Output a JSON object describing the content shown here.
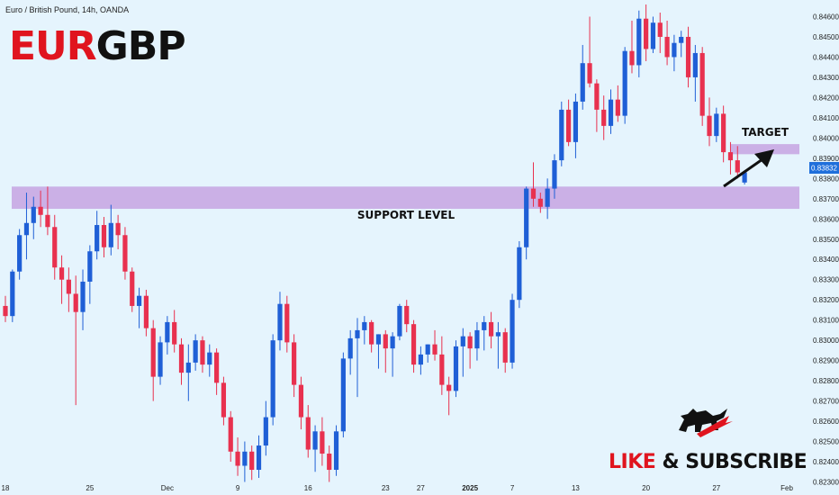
{
  "header": {
    "symbol_line": "Euro / British Pound, 14h, OANDA"
  },
  "title": {
    "part1": "EUR",
    "part2": "GBP"
  },
  "annotations": {
    "target": "TARGET",
    "support": "SUPPORT LEVEL"
  },
  "branding": {
    "cta_left": "LIKE ",
    "cta_amp": "&",
    "cta_right": " SUBSCRIBE",
    "logo_icon": "bull-bear-icon"
  },
  "colors": {
    "background": "#e5f4fd",
    "bull": "#1f5fd6",
    "bear": "#e8314f",
    "zone": "#c8a8e3",
    "title_red": "#e0141e",
    "title_black": "#111111"
  },
  "price_label": "0.83832",
  "chart_data": {
    "type": "candlestick",
    "symbol": "Euro / British Pound",
    "interval": "14h",
    "source": "OANDA",
    "ylim": [
      0.8228,
      0.8466
    ],
    "yticks": [
      "0.84600",
      "0.84500",
      "0.84400",
      "0.84300",
      "0.84200",
      "0.84100",
      "0.84000",
      "0.83900",
      "0.83800",
      "0.83700",
      "0.83600",
      "0.83500",
      "0.83400",
      "0.83300",
      "0.83200",
      "0.83100",
      "0.83000",
      "0.82900",
      "0.82800",
      "0.82700",
      "0.82600",
      "0.82500",
      "0.82400",
      "0.82300"
    ],
    "xticks": [
      {
        "label": "18",
        "index": 0
      },
      {
        "label": "25",
        "index": 12
      },
      {
        "label": "Dec",
        "index": 23
      },
      {
        "label": "9",
        "index": 33
      },
      {
        "label": "16",
        "index": 43
      },
      {
        "label": "23",
        "index": 54
      },
      {
        "label": "27",
        "index": 59
      },
      {
        "label": "2025",
        "index": 66
      },
      {
        "label": "7",
        "index": 72
      },
      {
        "label": "13",
        "index": 81
      },
      {
        "label": "20",
        "index": 91
      },
      {
        "label": "27",
        "index": 101
      },
      {
        "label": "Feb",
        "index": 111
      }
    ],
    "current_price": 0.83832,
    "support_zone": [
      0.8365,
      0.8376
    ],
    "target_zone": [
      0.8392,
      0.8397
    ],
    "candles": [
      {
        "o": 0.8317,
        "h": 0.8322,
        "l": 0.8309,
        "c": 0.8312
      },
      {
        "o": 0.8312,
        "h": 0.8335,
        "l": 0.8309,
        "c": 0.8334
      },
      {
        "o": 0.8334,
        "h": 0.8355,
        "l": 0.833,
        "c": 0.8352
      },
      {
        "o": 0.8352,
        "h": 0.8373,
        "l": 0.834,
        "c": 0.8358
      },
      {
        "o": 0.8358,
        "h": 0.8371,
        "l": 0.835,
        "c": 0.8366
      },
      {
        "o": 0.8366,
        "h": 0.8374,
        "l": 0.8356,
        "c": 0.8362
      },
      {
        "o": 0.8362,
        "h": 0.8376,
        "l": 0.8352,
        "c": 0.8356
      },
      {
        "o": 0.8356,
        "h": 0.8362,
        "l": 0.833,
        "c": 0.8336
      },
      {
        "o": 0.8336,
        "h": 0.8342,
        "l": 0.8318,
        "c": 0.833
      },
      {
        "o": 0.833,
        "h": 0.8336,
        "l": 0.8314,
        "c": 0.8323
      },
      {
        "o": 0.8323,
        "h": 0.8332,
        "l": 0.8268,
        "c": 0.8314
      },
      {
        "o": 0.8314,
        "h": 0.8335,
        "l": 0.8305,
        "c": 0.8329
      },
      {
        "o": 0.8329,
        "h": 0.8347,
        "l": 0.8318,
        "c": 0.8344
      },
      {
        "o": 0.8344,
        "h": 0.8364,
        "l": 0.834,
        "c": 0.8357
      },
      {
        "o": 0.8357,
        "h": 0.8361,
        "l": 0.8341,
        "c": 0.8346
      },
      {
        "o": 0.8346,
        "h": 0.8367,
        "l": 0.8342,
        "c": 0.8358
      },
      {
        "o": 0.8358,
        "h": 0.8362,
        "l": 0.8345,
        "c": 0.8352
      },
      {
        "o": 0.8352,
        "h": 0.8356,
        "l": 0.833,
        "c": 0.8334
      },
      {
        "o": 0.8334,
        "h": 0.8336,
        "l": 0.8314,
        "c": 0.8317
      },
      {
        "o": 0.8317,
        "h": 0.8326,
        "l": 0.8306,
        "c": 0.8322
      },
      {
        "o": 0.8322,
        "h": 0.8325,
        "l": 0.8302,
        "c": 0.8306
      },
      {
        "o": 0.8306,
        "h": 0.831,
        "l": 0.827,
        "c": 0.8282
      },
      {
        "o": 0.8282,
        "h": 0.8302,
        "l": 0.8278,
        "c": 0.8299
      },
      {
        "o": 0.8299,
        "h": 0.8312,
        "l": 0.8293,
        "c": 0.8309
      },
      {
        "o": 0.8309,
        "h": 0.8315,
        "l": 0.8294,
        "c": 0.8298
      },
      {
        "o": 0.8298,
        "h": 0.8301,
        "l": 0.8278,
        "c": 0.8284
      },
      {
        "o": 0.8284,
        "h": 0.8298,
        "l": 0.827,
        "c": 0.8289
      },
      {
        "o": 0.8289,
        "h": 0.8303,
        "l": 0.8285,
        "c": 0.83
      },
      {
        "o": 0.83,
        "h": 0.8302,
        "l": 0.8284,
        "c": 0.8288
      },
      {
        "o": 0.8288,
        "h": 0.8298,
        "l": 0.8282,
        "c": 0.8294
      },
      {
        "o": 0.8294,
        "h": 0.8296,
        "l": 0.8273,
        "c": 0.8279
      },
      {
        "o": 0.8279,
        "h": 0.8282,
        "l": 0.8258,
        "c": 0.8262
      },
      {
        "o": 0.8262,
        "h": 0.8265,
        "l": 0.824,
        "c": 0.8245
      },
      {
        "o": 0.8245,
        "h": 0.8252,
        "l": 0.8233,
        "c": 0.8238
      },
      {
        "o": 0.8238,
        "h": 0.825,
        "l": 0.823,
        "c": 0.8245
      },
      {
        "o": 0.8245,
        "h": 0.8248,
        "l": 0.8231,
        "c": 0.8236
      },
      {
        "o": 0.8236,
        "h": 0.8253,
        "l": 0.8232,
        "c": 0.8248
      },
      {
        "o": 0.8248,
        "h": 0.827,
        "l": 0.8243,
        "c": 0.8262
      },
      {
        "o": 0.8262,
        "h": 0.8303,
        "l": 0.8258,
        "c": 0.83
      },
      {
        "o": 0.83,
        "h": 0.8324,
        "l": 0.8295,
        "c": 0.8318
      },
      {
        "o": 0.8318,
        "h": 0.8322,
        "l": 0.8294,
        "c": 0.8299
      },
      {
        "o": 0.8299,
        "h": 0.8303,
        "l": 0.8272,
        "c": 0.8278
      },
      {
        "o": 0.8278,
        "h": 0.8282,
        "l": 0.8256,
        "c": 0.8262
      },
      {
        "o": 0.8262,
        "h": 0.8268,
        "l": 0.8242,
        "c": 0.8246
      },
      {
        "o": 0.8246,
        "h": 0.8258,
        "l": 0.8235,
        "c": 0.8255
      },
      {
        "o": 0.8255,
        "h": 0.8262,
        "l": 0.8238,
        "c": 0.8244
      },
      {
        "o": 0.8244,
        "h": 0.8248,
        "l": 0.823,
        "c": 0.8236
      },
      {
        "o": 0.8236,
        "h": 0.8258,
        "l": 0.8233,
        "c": 0.8255
      },
      {
        "o": 0.8255,
        "h": 0.8294,
        "l": 0.8252,
        "c": 0.8291
      },
      {
        "o": 0.8291,
        "h": 0.8305,
        "l": 0.8283,
        "c": 0.8301
      },
      {
        "o": 0.8301,
        "h": 0.8311,
        "l": 0.8272,
        "c": 0.8305
      },
      {
        "o": 0.8305,
        "h": 0.8312,
        "l": 0.8298,
        "c": 0.8309
      },
      {
        "o": 0.8309,
        "h": 0.831,
        "l": 0.8294,
        "c": 0.8298
      },
      {
        "o": 0.8298,
        "h": 0.8303,
        "l": 0.8286,
        "c": 0.8303
      },
      {
        "o": 0.8303,
        "h": 0.8305,
        "l": 0.8284,
        "c": 0.8296
      },
      {
        "o": 0.8296,
        "h": 0.8304,
        "l": 0.8282,
        "c": 0.8302
      },
      {
        "o": 0.8302,
        "h": 0.8318,
        "l": 0.83,
        "c": 0.8317
      },
      {
        "o": 0.8317,
        "h": 0.832,
        "l": 0.8304,
        "c": 0.8308
      },
      {
        "o": 0.8308,
        "h": 0.831,
        "l": 0.8284,
        "c": 0.8288
      },
      {
        "o": 0.8288,
        "h": 0.8297,
        "l": 0.8283,
        "c": 0.8293
      },
      {
        "o": 0.8293,
        "h": 0.8298,
        "l": 0.8289,
        "c": 0.8298
      },
      {
        "o": 0.8298,
        "h": 0.8305,
        "l": 0.829,
        "c": 0.8293
      },
      {
        "o": 0.8293,
        "h": 0.8302,
        "l": 0.8273,
        "c": 0.8278
      },
      {
        "o": 0.8278,
        "h": 0.8282,
        "l": 0.8263,
        "c": 0.8275
      },
      {
        "o": 0.8275,
        "h": 0.83,
        "l": 0.8272,
        "c": 0.8297
      },
      {
        "o": 0.8297,
        "h": 0.8306,
        "l": 0.8282,
        "c": 0.8302
      },
      {
        "o": 0.8302,
        "h": 0.8304,
        "l": 0.8286,
        "c": 0.8296
      },
      {
        "o": 0.8296,
        "h": 0.8309,
        "l": 0.829,
        "c": 0.8305
      },
      {
        "o": 0.8305,
        "h": 0.8312,
        "l": 0.8295,
        "c": 0.8309
      },
      {
        "o": 0.8309,
        "h": 0.8314,
        "l": 0.8296,
        "c": 0.8302
      },
      {
        "o": 0.8302,
        "h": 0.8309,
        "l": 0.8286,
        "c": 0.8304
      },
      {
        "o": 0.8304,
        "h": 0.8306,
        "l": 0.8284,
        "c": 0.8289
      },
      {
        "o": 0.8289,
        "h": 0.8323,
        "l": 0.8286,
        "c": 0.832
      },
      {
        "o": 0.832,
        "h": 0.8349,
        "l": 0.8316,
        "c": 0.8346
      },
      {
        "o": 0.8346,
        "h": 0.8376,
        "l": 0.834,
        "c": 0.8375
      },
      {
        "o": 0.8375,
        "h": 0.8388,
        "l": 0.8366,
        "c": 0.837
      },
      {
        "o": 0.837,
        "h": 0.8373,
        "l": 0.8363,
        "c": 0.8366
      },
      {
        "o": 0.8366,
        "h": 0.838,
        "l": 0.836,
        "c": 0.8375
      },
      {
        "o": 0.8375,
        "h": 0.8392,
        "l": 0.837,
        "c": 0.8389
      },
      {
        "o": 0.8389,
        "h": 0.8418,
        "l": 0.8386,
        "c": 0.8414
      },
      {
        "o": 0.8414,
        "h": 0.8419,
        "l": 0.8396,
        "c": 0.8398
      },
      {
        "o": 0.8398,
        "h": 0.8422,
        "l": 0.839,
        "c": 0.8418
      },
      {
        "o": 0.8418,
        "h": 0.8446,
        "l": 0.8414,
        "c": 0.8437
      },
      {
        "o": 0.8437,
        "h": 0.846,
        "l": 0.8425,
        "c": 0.8427
      },
      {
        "o": 0.8427,
        "h": 0.8429,
        "l": 0.8403,
        "c": 0.8414
      },
      {
        "o": 0.8414,
        "h": 0.8421,
        "l": 0.8399,
        "c": 0.8406
      },
      {
        "o": 0.8406,
        "h": 0.8424,
        "l": 0.8402,
        "c": 0.8419
      },
      {
        "o": 0.8419,
        "h": 0.8426,
        "l": 0.8408,
        "c": 0.8411
      },
      {
        "o": 0.8411,
        "h": 0.8445,
        "l": 0.8407,
        "c": 0.8443
      },
      {
        "o": 0.8443,
        "h": 0.8458,
        "l": 0.8432,
        "c": 0.8436
      },
      {
        "o": 0.8436,
        "h": 0.8463,
        "l": 0.843,
        "c": 0.8459
      },
      {
        "o": 0.8459,
        "h": 0.8466,
        "l": 0.8438,
        "c": 0.8444
      },
      {
        "o": 0.8444,
        "h": 0.846,
        "l": 0.8442,
        "c": 0.8457
      },
      {
        "o": 0.8457,
        "h": 0.8462,
        "l": 0.8442,
        "c": 0.845
      },
      {
        "o": 0.845,
        "h": 0.8458,
        "l": 0.8436,
        "c": 0.844
      },
      {
        "o": 0.844,
        "h": 0.8451,
        "l": 0.8433,
        "c": 0.8447
      },
      {
        "o": 0.8447,
        "h": 0.8453,
        "l": 0.844,
        "c": 0.845
      },
      {
        "o": 0.845,
        "h": 0.8455,
        "l": 0.8425,
        "c": 0.843
      },
      {
        "o": 0.843,
        "h": 0.8446,
        "l": 0.8418,
        "c": 0.8442
      },
      {
        "o": 0.8442,
        "h": 0.8445,
        "l": 0.8406,
        "c": 0.8411
      },
      {
        "o": 0.8411,
        "h": 0.842,
        "l": 0.8396,
        "c": 0.8401
      },
      {
        "o": 0.8401,
        "h": 0.8415,
        "l": 0.8398,
        "c": 0.8412
      },
      {
        "o": 0.8412,
        "h": 0.8416,
        "l": 0.8388,
        "c": 0.8393
      },
      {
        "o": 0.8393,
        "h": 0.8398,
        "l": 0.8382,
        "c": 0.8389
      },
      {
        "o": 0.8389,
        "h": 0.8396,
        "l": 0.838,
        "c": 0.8383
      },
      {
        "o": 0.8378,
        "h": 0.8384,
        "l": 0.8377,
        "c": 0.8383
      }
    ]
  }
}
